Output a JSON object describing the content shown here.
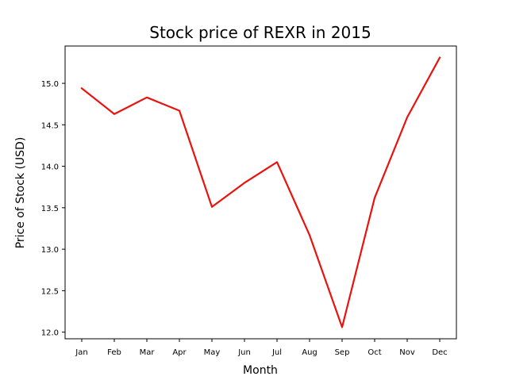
{
  "chart_data": {
    "type": "line",
    "title": "Stock price of REXR in 2015",
    "xlabel": "Month",
    "ylabel": "Price of Stock (USD)",
    "categories": [
      "Jan",
      "Feb",
      "Mar",
      "Apr",
      "May",
      "Jun",
      "Jul",
      "Aug",
      "Sep",
      "Oct",
      "Nov",
      "Dec"
    ],
    "series": [
      {
        "values": [
          14.94,
          14.63,
          14.83,
          14.67,
          13.51,
          13.8,
          14.05,
          13.17,
          12.06,
          13.62,
          14.59,
          15.31
        ],
        "color": "#e8130d"
      }
    ],
    "ylim": [
      11.92,
      15.45
    ],
    "yticks": [
      "12.0",
      "12.5",
      "13.0",
      "13.5",
      "14.0",
      "14.5",
      "15.0"
    ],
    "grid": false,
    "legend": "none"
  }
}
